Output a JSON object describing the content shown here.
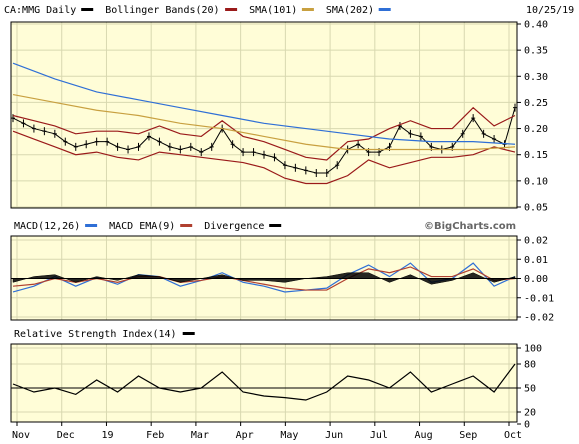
{
  "header": {
    "symbol_label": "CA:MMG Daily",
    "date": "10/25/19"
  },
  "watermark": "©BigCharts.com",
  "colors": {
    "panel_bg": "#fffdd7",
    "grid": "#d8d8b0",
    "price": "#000000",
    "bollinger": "#9a1a1a",
    "sma101": "#c8a040",
    "sma202": "#2f6fd6",
    "macd": "#2f6fd6",
    "macd_ema": "#b04030",
    "divergence": "#000000",
    "rsi": "#000000"
  },
  "x_axis": {
    "labels": [
      "Nov",
      "Dec",
      "19",
      "Feb",
      "Mar",
      "Apr",
      "May",
      "Jun",
      "Jul",
      "Aug",
      "Sep",
      "Oct"
    ]
  },
  "chart_data": [
    {
      "type": "line",
      "name": "price",
      "legend": [
        {
          "name": "CA:MMG Daily",
          "color": "#000000"
        },
        {
          "name": "Bollinger Bands(20)",
          "color": "#9a1a1a"
        },
        {
          "name": "SMA(101)",
          "color": "#c8a040"
        },
        {
          "name": "SMA(202)",
          "color": "#2f6fd6"
        }
      ],
      "ylim": [
        0.05,
        0.4
      ],
      "yticks": [
        "0.40",
        "0.35",
        "0.30",
        "0.25",
        "0.20",
        "0.15",
        "0.10",
        "0.05"
      ],
      "x_range": [
        0,
        240
      ],
      "series": [
        {
          "name": "CA:MMG Daily",
          "kind": "ohlc",
          "x": [
            0,
            5,
            10,
            15,
            20,
            25,
            30,
            35,
            40,
            45,
            50,
            55,
            60,
            65,
            70,
            75,
            80,
            85,
            90,
            95,
            100,
            105,
            110,
            115,
            120,
            125,
            130,
            135,
            140,
            145,
            150,
            155,
            160,
            165,
            170,
            175,
            180,
            185,
            190,
            195,
            200,
            205,
            210,
            215,
            220,
            225,
            230,
            235,
            240
          ],
          "values": [
            0.22,
            0.21,
            0.2,
            0.195,
            0.19,
            0.175,
            0.165,
            0.17,
            0.175,
            0.175,
            0.165,
            0.16,
            0.165,
            0.185,
            0.175,
            0.165,
            0.16,
            0.165,
            0.155,
            0.165,
            0.2,
            0.17,
            0.155,
            0.155,
            0.15,
            0.145,
            0.13,
            0.125,
            0.12,
            0.115,
            0.115,
            0.13,
            0.16,
            0.17,
            0.155,
            0.155,
            0.165,
            0.205,
            0.19,
            0.185,
            0.165,
            0.16,
            0.165,
            0.19,
            0.22,
            0.19,
            0.18,
            0.17,
            0.24
          ]
        },
        {
          "name": "Bollinger upper",
          "x": [
            0,
            10,
            20,
            30,
            40,
            50,
            60,
            70,
            80,
            90,
            100,
            110,
            120,
            130,
            140,
            150,
            160,
            170,
            180,
            190,
            200,
            210,
            220,
            230,
            240
          ],
          "values": [
            0.225,
            0.215,
            0.205,
            0.19,
            0.195,
            0.195,
            0.19,
            0.205,
            0.19,
            0.185,
            0.215,
            0.185,
            0.175,
            0.16,
            0.145,
            0.14,
            0.175,
            0.18,
            0.2,
            0.215,
            0.2,
            0.2,
            0.24,
            0.205,
            0.225
          ]
        },
        {
          "name": "Bollinger lower",
          "x": [
            0,
            10,
            20,
            30,
            40,
            50,
            60,
            70,
            80,
            90,
            100,
            110,
            120,
            130,
            140,
            150,
            160,
            170,
            180,
            190,
            200,
            210,
            220,
            230,
            240
          ],
          "values": [
            0.195,
            0.18,
            0.165,
            0.15,
            0.155,
            0.145,
            0.14,
            0.155,
            0.15,
            0.145,
            0.14,
            0.135,
            0.125,
            0.105,
            0.095,
            0.095,
            0.11,
            0.14,
            0.125,
            0.135,
            0.145,
            0.145,
            0.15,
            0.165,
            0.155
          ]
        },
        {
          "name": "SMA(101)",
          "x": [
            0,
            20,
            40,
            60,
            80,
            100,
            120,
            140,
            160,
            180,
            200,
            220,
            240
          ],
          "values": [
            0.265,
            0.25,
            0.235,
            0.225,
            0.21,
            0.2,
            0.185,
            0.17,
            0.16,
            0.16,
            0.16,
            0.16,
            0.165
          ]
        },
        {
          "name": "SMA(202)",
          "x": [
            0,
            20,
            40,
            60,
            80,
            100,
            120,
            140,
            160,
            180,
            200,
            220,
            240
          ],
          "values": [
            0.325,
            0.295,
            0.27,
            0.255,
            0.24,
            0.225,
            0.21,
            0.2,
            0.19,
            0.18,
            0.175,
            0.175,
            0.17
          ]
        }
      ]
    },
    {
      "type": "line",
      "name": "macd",
      "legend": [
        {
          "name": "MACD(12,26)",
          "color": "#2f6fd6"
        },
        {
          "name": "MACD EMA(9)",
          "color": "#b04030"
        },
        {
          "name": "Divergence",
          "color": "#000000"
        }
      ],
      "ylim": [
        -0.02,
        0.02
      ],
      "yticks": [
        "0.02",
        "0.01",
        "0.00",
        "-0.01",
        "-0.02"
      ],
      "x_range": [
        0,
        240
      ],
      "series": [
        {
          "name": "MACD(12,26)",
          "x": [
            0,
            10,
            20,
            30,
            40,
            50,
            60,
            70,
            80,
            90,
            100,
            110,
            120,
            130,
            140,
            150,
            160,
            170,
            180,
            190,
            200,
            210,
            220,
            230,
            240
          ],
          "values": [
            -0.007,
            -0.004,
            0.001,
            -0.004,
            0.0005,
            -0.003,
            0.002,
            0.001,
            -0.004,
            -0.001,
            0.003,
            -0.002,
            -0.004,
            -0.007,
            -0.006,
            -0.005,
            0.002,
            0.007,
            0.001,
            0.008,
            -0.002,
            0.0,
            0.008,
            -0.004,
            0.001
          ]
        },
        {
          "name": "MACD EMA(9)",
          "x": [
            0,
            10,
            20,
            30,
            40,
            50,
            60,
            70,
            80,
            90,
            100,
            110,
            120,
            130,
            140,
            150,
            160,
            170,
            180,
            190,
            200,
            210,
            220,
            230,
            240
          ],
          "values": [
            -0.004,
            -0.003,
            0.0,
            -0.002,
            0.0,
            -0.002,
            0.001,
            0.001,
            -0.002,
            -0.001,
            0.001,
            -0.001,
            -0.003,
            -0.005,
            -0.006,
            -0.006,
            0.0,
            0.005,
            0.003,
            0.006,
            0.001,
            0.001,
            0.005,
            -0.001,
            0.0
          ]
        },
        {
          "name": "Divergence",
          "kind": "area",
          "x": [
            0,
            10,
            20,
            30,
            40,
            50,
            60,
            70,
            80,
            90,
            100,
            110,
            120,
            130,
            140,
            150,
            160,
            170,
            180,
            190,
            200,
            210,
            220,
            230,
            240
          ],
          "values": [
            -0.002,
            0.001,
            0.002,
            -0.002,
            0.001,
            -0.001,
            0.002,
            0.001,
            -0.002,
            0.0,
            0.002,
            -0.001,
            -0.001,
            -0.002,
            0.0,
            0.001,
            0.003,
            0.003,
            -0.002,
            0.002,
            -0.003,
            -0.001,
            0.003,
            -0.002,
            0.001
          ]
        }
      ]
    },
    {
      "type": "line",
      "name": "rsi",
      "legend": [
        {
          "name": "Relative Strength Index(14)",
          "color": "#000000"
        }
      ],
      "ylim": [
        10,
        100
      ],
      "yticks": [
        "100",
        "80",
        "50",
        "20",
        "0"
      ],
      "x_range": [
        0,
        240
      ],
      "series": [
        {
          "name": "Relative Strength Index(14)",
          "x": [
            0,
            10,
            20,
            30,
            40,
            50,
            60,
            70,
            80,
            90,
            100,
            110,
            120,
            130,
            140,
            150,
            160,
            170,
            180,
            190,
            200,
            210,
            220,
            230,
            240
          ],
          "values": [
            55,
            45,
            50,
            42,
            60,
            45,
            65,
            50,
            45,
            50,
            70,
            45,
            40,
            38,
            35,
            45,
            65,
            60,
            50,
            70,
            45,
            55,
            65,
            45,
            80
          ]
        }
      ]
    }
  ]
}
